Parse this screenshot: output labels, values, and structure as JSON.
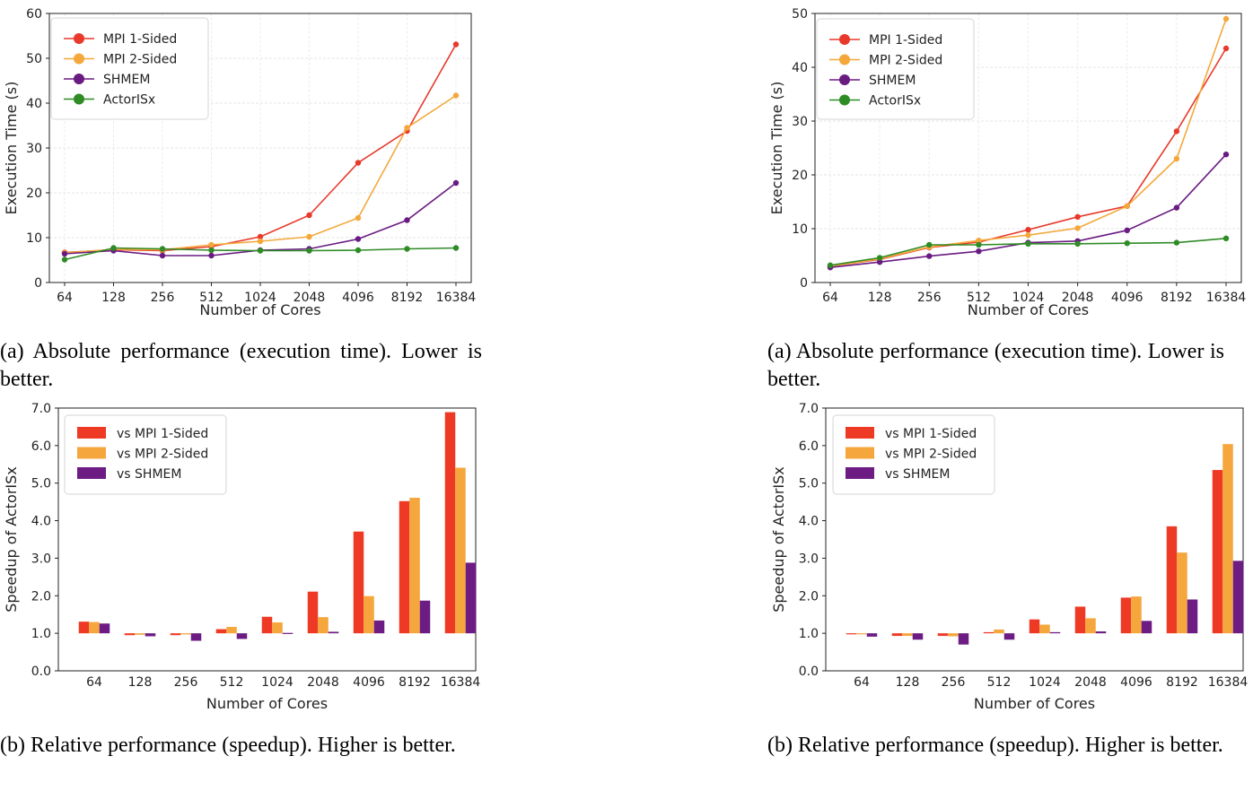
{
  "colors": {
    "mpi1": "#e8392b",
    "mpi2": "#f4a83b",
    "shmem": "#6a1b82",
    "actor": "#2e8b25",
    "mpi1_bar": "#ee3a24",
    "mpi2_bar": "#f5a63c",
    "shmem_bar": "#6c1c83"
  },
  "captions": {
    "left_top": "(a) Absolute performance (execution time). Lower is better.",
    "right_top": "(a) Absolute performance (execution time). Lower is better.",
    "left_bottom": "(b) Relative performance (speedup). Higher is better.",
    "right_bottom": "(b) Relative performance (speedup). Higher is better."
  },
  "chart_data": [
    {
      "type": "line",
      "xlabel": "Number of Cores",
      "ylabel": "Execution Time (s)",
      "categories": [
        "64",
        "128",
        "256",
        "512",
        "1024",
        "2048",
        "4096",
        "8192",
        "16384"
      ],
      "ylim": [
        0,
        60
      ],
      "yticks": [
        "0",
        "10",
        "20",
        "30",
        "40",
        "50",
        "60"
      ],
      "grid": true,
      "legend": "top-left",
      "series": [
        {
          "name": "MPI 1-Sided",
          "values": [
            6.7,
            7.3,
            7.1,
            8.0,
            10.2,
            15.0,
            26.7,
            33.8,
            53.1
          ]
        },
        {
          "name": "MPI 2-Sided",
          "values": [
            6.6,
            7.4,
            7.3,
            8.4,
            9.2,
            10.2,
            14.4,
            34.5,
            41.7
          ]
        },
        {
          "name": "SHMEM",
          "values": [
            6.4,
            7.1,
            6.0,
            6.0,
            7.2,
            7.5,
            9.7,
            13.9,
            22.2
          ]
        },
        {
          "name": "ActorISx",
          "values": [
            5.1,
            7.7,
            7.5,
            7.2,
            7.1,
            7.1,
            7.2,
            7.5,
            7.7
          ]
        }
      ]
    },
    {
      "type": "line",
      "xlabel": "Number of Cores",
      "ylabel": "Execution Time (s)",
      "categories": [
        "64",
        "128",
        "256",
        "512",
        "1024",
        "2048",
        "4096",
        "8192",
        "16384"
      ],
      "ylim": [
        0,
        50
      ],
      "yticks": [
        "0",
        "10",
        "20",
        "30",
        "40",
        "50"
      ],
      "grid": true,
      "legend": "top-left",
      "series": [
        {
          "name": "MPI 1-Sided",
          "values": [
            3.0,
            4.3,
            6.5,
            7.5,
            9.8,
            12.2,
            14.2,
            28.1,
            43.5
          ]
        },
        {
          "name": "MPI 2-Sided",
          "values": [
            3.0,
            4.4,
            6.6,
            7.8,
            8.8,
            10.1,
            14.2,
            23.0,
            49.0
          ]
        },
        {
          "name": "SHMEM",
          "values": [
            2.8,
            3.8,
            4.9,
            5.8,
            7.4,
            7.7,
            9.7,
            13.9,
            23.8
          ]
        },
        {
          "name": "ActorISx",
          "values": [
            3.2,
            4.6,
            7.0,
            7.0,
            7.2,
            7.2,
            7.3,
            7.4,
            8.2
          ]
        }
      ]
    },
    {
      "type": "bar",
      "xlabel": "Number of Cores",
      "ylabel": "Speedup of ActorISx",
      "categories": [
        "64",
        "128",
        "256",
        "512",
        "1024",
        "2048",
        "4096",
        "8192",
        "16384"
      ],
      "ylim": [
        0,
        7
      ],
      "yticks": [
        "0.0",
        "1.0",
        "2.0",
        "3.0",
        "4.0",
        "5.0",
        "6.0",
        "7.0"
      ],
      "baseline": 1.0,
      "legend": "top-left",
      "series": [
        {
          "name": "vs MPI 1-Sided",
          "values": [
            1.31,
            0.95,
            0.95,
            1.11,
            1.44,
            2.11,
            3.71,
            4.52,
            6.89
          ]
        },
        {
          "name": "vs MPI 2-Sided",
          "values": [
            1.3,
            0.96,
            0.97,
            1.17,
            1.29,
            1.43,
            1.99,
            4.61,
            5.41
          ]
        },
        {
          "name": "vs SHMEM",
          "values": [
            1.26,
            0.92,
            0.8,
            0.85,
            1.01,
            1.04,
            1.34,
            1.87,
            2.88
          ]
        }
      ]
    },
    {
      "type": "bar",
      "xlabel": "Number of Cores",
      "ylabel": "Speedup of ActorISx",
      "categories": [
        "64",
        "128",
        "256",
        "512",
        "1024",
        "2048",
        "4096",
        "8192",
        "16384"
      ],
      "ylim": [
        0,
        7
      ],
      "yticks": [
        "0.0",
        "1.0",
        "2.0",
        "3.0",
        "4.0",
        "5.0",
        "6.0",
        "7.0"
      ],
      "baseline": 1.0,
      "legend": "top-left",
      "series": [
        {
          "name": "vs MPI 1-Sided",
          "values": [
            0.98,
            0.93,
            0.93,
            1.03,
            1.37,
            1.71,
            1.95,
            3.85,
            5.35
          ]
        },
        {
          "name": "vs MPI 2-Sided",
          "values": [
            0.99,
            0.93,
            0.92,
            1.1,
            1.23,
            1.4,
            1.98,
            3.15,
            6.04
          ]
        },
        {
          "name": "vs SHMEM",
          "values": [
            0.91,
            0.83,
            0.7,
            0.83,
            1.03,
            1.05,
            1.33,
            1.9,
            2.93
          ]
        }
      ]
    }
  ]
}
